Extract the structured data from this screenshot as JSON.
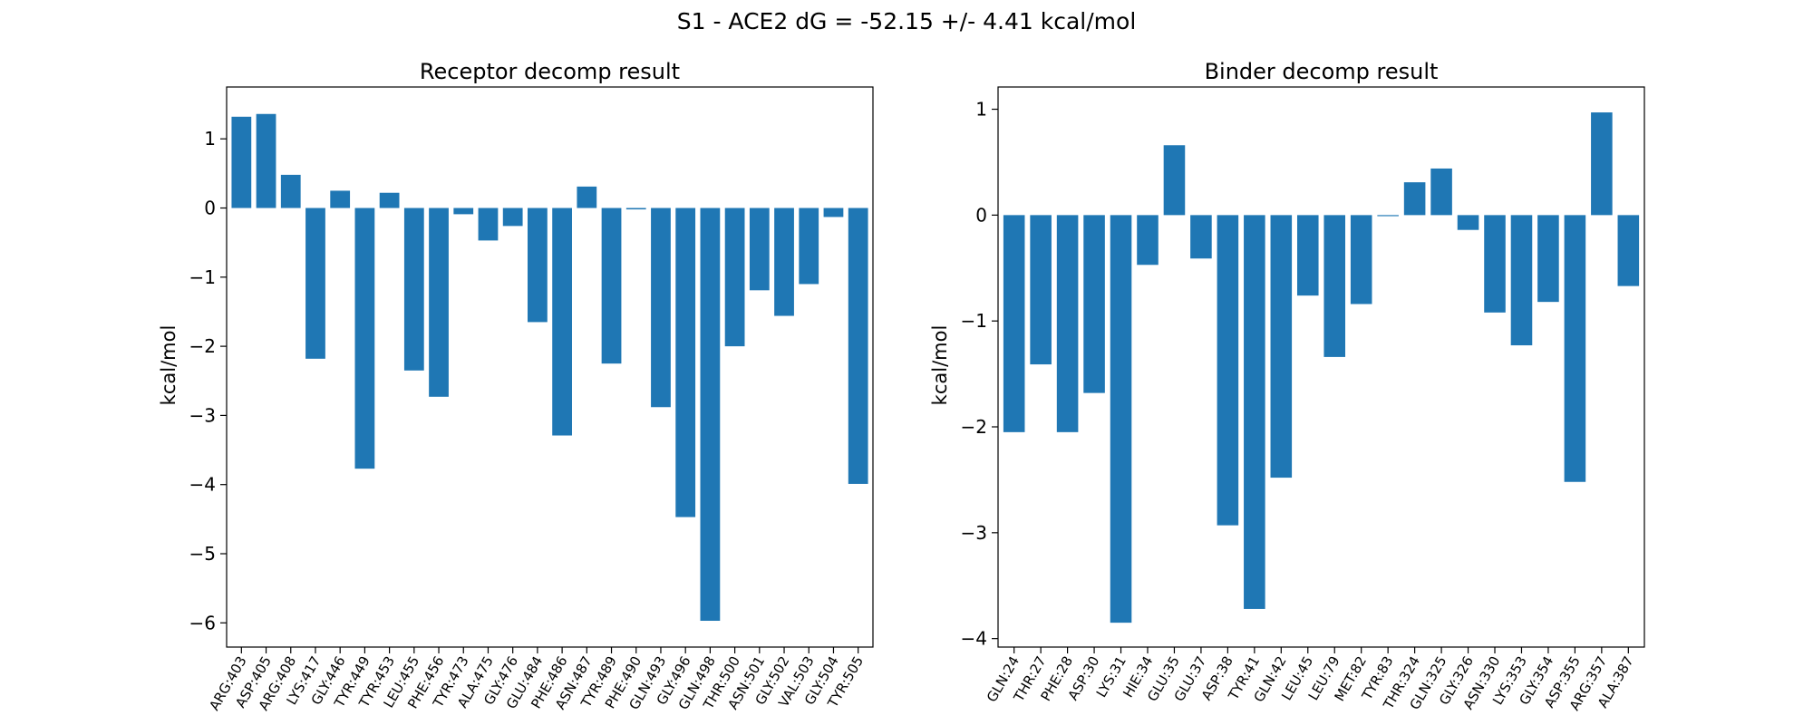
{
  "figure": {
    "suptitle": "S1 - ACE2 dG = -52.15 +/- 4.41 kcal/mol"
  },
  "colors": {
    "bar": "#1f77b4",
    "axis": "#000000",
    "background": "#ffffff"
  },
  "chart_data": [
    {
      "type": "bar",
      "title": "Receptor decomp result",
      "xlabel": "",
      "ylabel": "kcal/mol",
      "ylim": [
        -6.35,
        1.75
      ],
      "yticks": [
        1,
        0,
        -1,
        -2,
        -3,
        -4,
        -5,
        -6
      ],
      "ytick_labels": [
        "1",
        "0",
        "−1",
        "−2",
        "−3",
        "−4",
        "−5",
        "−6"
      ],
      "grid": false,
      "categories": [
        "ARG:403",
        "ASP:405",
        "ARG:408",
        "LYS:417",
        "GLY:446",
        "TYR:449",
        "TYR:453",
        "LEU:455",
        "PHE:456",
        "TYR:473",
        "ALA:475",
        "GLY:476",
        "GLU:484",
        "PHE:486",
        "ASN:487",
        "TYR:489",
        "PHE:490",
        "GLN:493",
        "GLY:496",
        "GLN:498",
        "THR:500",
        "ASN:501",
        "GLY:502",
        "VAL:503",
        "GLY:504",
        "TYR:505"
      ],
      "values": [
        1.32,
        1.36,
        0.48,
        -2.18,
        0.25,
        -3.77,
        0.22,
        -2.35,
        -2.73,
        -0.09,
        -0.47,
        -0.26,
        -1.65,
        -3.29,
        0.31,
        -2.25,
        -0.02,
        -2.88,
        -4.47,
        -5.97,
        -2.0,
        -1.19,
        -1.56,
        -1.1,
        -0.13,
        -3.99
      ]
    },
    {
      "type": "bar",
      "title": "Binder decomp result",
      "xlabel": "",
      "ylabel": "kcal/mol",
      "ylim": [
        -4.08,
        1.21
      ],
      "yticks": [
        1,
        0,
        -1,
        -2,
        -3,
        -4
      ],
      "ytick_labels": [
        "1",
        "0",
        "−1",
        "−2",
        "−3",
        "−4"
      ],
      "grid": false,
      "categories": [
        "GLN:24",
        "THR:27",
        "PHE:28",
        "ASP:30",
        "LYS:31",
        "HIE:34",
        "GLU:35",
        "GLU:37",
        "ASP:38",
        "TYR:41",
        "GLN:42",
        "LEU:45",
        "LEU:79",
        "MET:82",
        "TYR:83",
        "THR:324",
        "GLN:325",
        "GLY:326",
        "ASN:330",
        "LYS:353",
        "GLY:354",
        "ASP:355",
        "ARG:357",
        "ALA:387"
      ],
      "values": [
        -2.05,
        -1.41,
        -2.05,
        -1.68,
        -3.85,
        -0.47,
        0.66,
        -0.41,
        -2.93,
        -3.72,
        -2.48,
        -0.76,
        -1.34,
        -0.84,
        -0.01,
        0.31,
        0.44,
        -0.14,
        -0.92,
        -1.23,
        -0.82,
        -2.52,
        0.97,
        -0.67
      ]
    }
  ]
}
